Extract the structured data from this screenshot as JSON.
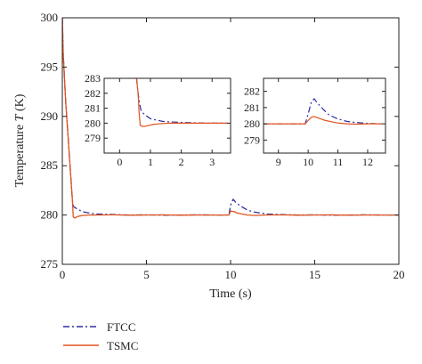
{
  "chart_data": [
    {
      "type": "line",
      "role": "main",
      "xlabel": "Time (s)",
      "ylabel_prefix": "Temperature ",
      "ylabel_var": "T",
      "ylabel_unit": " (K)",
      "xlim": [
        0,
        20
      ],
      "ylim": [
        275,
        300
      ],
      "xticks": [
        "0",
        "5",
        "10",
        "15",
        "20"
      ],
      "yticks": [
        "275",
        "280",
        "285",
        "290",
        "295",
        "300"
      ],
      "series": [
        {
          "name": "FTCC",
          "style": "dashdot",
          "x": [
            0,
            0.05,
            0.2,
            0.4,
            0.6,
            0.65,
            0.8,
            1.0,
            1.3,
            1.6,
            2.0,
            3,
            4,
            5,
            6,
            7,
            8,
            9,
            9.9,
            10.0,
            10.15,
            10.3,
            10.6,
            11.0,
            11.4,
            11.8,
            12.2,
            13,
            14,
            15,
            16,
            17,
            18,
            19,
            20
          ],
          "y": [
            300,
            296.5,
            291.5,
            286.5,
            281.5,
            280.9,
            280.7,
            280.5,
            280.3,
            280.2,
            280.1,
            280.05,
            280.0,
            280.02,
            279.98,
            280.0,
            280.02,
            280.0,
            280.0,
            281.0,
            281.6,
            281.3,
            280.9,
            280.5,
            280.3,
            280.2,
            280.1,
            280.05,
            280.0,
            280.02,
            279.98,
            280.0,
            280.02,
            280.0,
            280.0
          ]
        },
        {
          "name": "TSMC",
          "style": "solid",
          "x": [
            0,
            0.05,
            0.2,
            0.4,
            0.6,
            0.65,
            0.75,
            0.9,
            1.2,
            1.6,
            2.0,
            3,
            4,
            5,
            6,
            7,
            8,
            9,
            9.9,
            10.0,
            10.2,
            10.4,
            10.7,
            11.0,
            11.5,
            12,
            13,
            14,
            15,
            16,
            17,
            18,
            19,
            20
          ],
          "y": [
            300,
            296.5,
            291.5,
            286.5,
            281.5,
            279.8,
            279.7,
            279.85,
            279.95,
            280.0,
            280.0,
            280.02,
            279.98,
            280.0,
            280.02,
            279.98,
            280.0,
            280.0,
            280.0,
            280.4,
            280.35,
            280.2,
            280.1,
            280.0,
            279.95,
            280.0,
            280.02,
            279.98,
            280.0,
            280.02,
            279.98,
            280.0,
            280.0,
            280.0
          ]
        }
      ]
    },
    {
      "type": "line",
      "role": "inset-left",
      "xlim": [
        -0.5,
        3.6
      ],
      "ylim": [
        278,
        283
      ],
      "xticks": [
        "0",
        "1",
        "2",
        "3"
      ],
      "yticks": [
        "279",
        "280",
        "281",
        "282",
        "283"
      ],
      "series": [
        {
          "name": "FTCC",
          "style": "dashdot",
          "x": [
            0.55,
            0.6,
            0.65,
            0.7,
            0.8,
            0.9,
            1.0,
            1.2,
            1.4,
            1.7,
            2.0,
            2.5,
            3.0,
            3.5
          ],
          "y": [
            283,
            282,
            281.3,
            280.8,
            280.6,
            280.45,
            280.3,
            280.2,
            280.12,
            280.08,
            280.05,
            280.02,
            280.0,
            280.0
          ]
        },
        {
          "name": "TSMC",
          "style": "solid",
          "x": [
            0.55,
            0.6,
            0.63,
            0.67,
            0.72,
            0.8,
            0.95,
            1.1,
            1.3,
            1.6,
            2.0,
            2.5,
            3.0,
            3.5
          ],
          "y": [
            283,
            282,
            280.8,
            279.85,
            279.8,
            279.78,
            279.85,
            279.92,
            279.96,
            280.0,
            280.0,
            280.0,
            280.0,
            280.0
          ]
        }
      ]
    },
    {
      "type": "line",
      "role": "inset-right",
      "xlim": [
        8.5,
        12.6
      ],
      "ylim": [
        278.2,
        282.8
      ],
      "xticks": [
        "9",
        "10",
        "11",
        "12"
      ],
      "yticks": [
        "279",
        "280",
        "281",
        "282"
      ],
      "series": [
        {
          "name": "FTCC",
          "style": "dashdot",
          "x": [
            8.5,
            9.0,
            9.5,
            9.9,
            10.0,
            10.1,
            10.2,
            10.3,
            10.5,
            10.7,
            11.0,
            11.3,
            11.6,
            12.0,
            12.5
          ],
          "y": [
            280.0,
            280.0,
            280.0,
            280.0,
            280.6,
            281.3,
            281.55,
            281.3,
            280.9,
            280.55,
            280.3,
            280.15,
            280.08,
            280.03,
            280.0
          ]
        },
        {
          "name": "TSMC",
          "style": "solid",
          "x": [
            8.5,
            9.0,
            9.5,
            9.9,
            10.0,
            10.1,
            10.2,
            10.35,
            10.55,
            10.8,
            11.0,
            11.3,
            11.6,
            12.0,
            12.5
          ],
          "y": [
            280.0,
            280.0,
            280.0,
            280.0,
            280.2,
            280.4,
            280.45,
            280.35,
            280.22,
            280.12,
            280.05,
            280.0,
            279.98,
            280.0,
            280.0
          ]
        }
      ]
    }
  ],
  "colors": {
    "FTCC": "#2b2ea0",
    "TSMC": "#e0521d",
    "axis": "#222222"
  },
  "legend": [
    {
      "label": "FTCC",
      "style": "dashdot"
    },
    {
      "label": "TSMC",
      "style": "solid"
    }
  ]
}
